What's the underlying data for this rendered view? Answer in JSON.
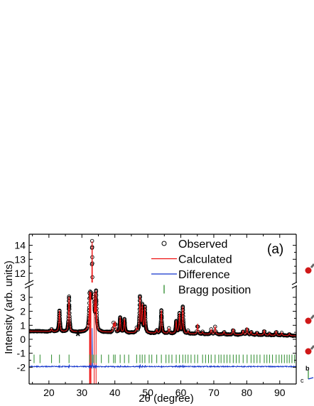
{
  "panel_label": "(a)",
  "chart_data": {
    "type": "scatter",
    "xlabel": "2θ (degree)",
    "ylabel": "Intensity (arb. units)",
    "xlim": [
      14,
      95
    ],
    "x_ticks": [
      20,
      30,
      40,
      50,
      60,
      70,
      80,
      90
    ],
    "y_lower_range": [
      -2.3,
      3.5
    ],
    "y_upper_range": [
      11.3,
      14.4
    ],
    "y_ticks_lower": [
      -2,
      -1,
      0,
      1,
      2,
      3
    ],
    "y_ticks_upper": [
      12,
      13,
      14
    ],
    "axis_break": true,
    "legend_position": "top-right",
    "colors": {
      "observed": "#000000",
      "calculated": "#ee1111",
      "difference": "#1133cc",
      "bragg": "#2a8a2a"
    },
    "annotation": {
      "text": "*",
      "x": 28.8,
      "y": 0.3
    },
    "background": {
      "start": 0.58,
      "end": 0.25
    },
    "peaks": [
      {
        "x": 20.8,
        "h": 0.18
      },
      {
        "x": 23.2,
        "h": 1.5
      },
      {
        "x": 26.1,
        "h": 2.5
      },
      {
        "x": 32.4,
        "h": 2.9
      },
      {
        "x": 33.1,
        "h": 13.3
      },
      {
        "x": 33.6,
        "h": 3.2
      },
      {
        "x": 34.3,
        "h": 2.6
      },
      {
        "x": 39.6,
        "h": 0.6
      },
      {
        "x": 40.1,
        "h": 0.7
      },
      {
        "x": 41.6,
        "h": 1.05
      },
      {
        "x": 42.9,
        "h": 0.95
      },
      {
        "x": 46.6,
        "h": 0.3
      },
      {
        "x": 47.6,
        "h": 2.5
      },
      {
        "x": 48.3,
        "h": 1.9
      },
      {
        "x": 49.1,
        "h": 1.8
      },
      {
        "x": 52.7,
        "h": 0.25
      },
      {
        "x": 54.1,
        "h": 1.65
      },
      {
        "x": 56.4,
        "h": 0.35
      },
      {
        "x": 58.6,
        "h": 0.85
      },
      {
        "x": 59.6,
        "h": 1.4
      },
      {
        "x": 60.6,
        "h": 1.9
      },
      {
        "x": 62.2,
        "h": 0.2
      },
      {
        "x": 65.1,
        "h": 0.7
      },
      {
        "x": 66.6,
        "h": 0.15
      },
      {
        "x": 69.2,
        "h": 0.35
      },
      {
        "x": 70.4,
        "h": 0.55
      },
      {
        "x": 73.1,
        "h": 0.2
      },
      {
        "x": 75.9,
        "h": 0.4
      },
      {
        "x": 78.9,
        "h": 0.3
      },
      {
        "x": 80.1,
        "h": 0.5
      },
      {
        "x": 81.3,
        "h": 0.25
      },
      {
        "x": 83.1,
        "h": 0.2
      },
      {
        "x": 85.3,
        "h": 0.35
      },
      {
        "x": 86.9,
        "h": 0.15
      },
      {
        "x": 88.9,
        "h": 0.3
      },
      {
        "x": 90.6,
        "h": 0.2
      },
      {
        "x": 92.9,
        "h": 0.15
      }
    ],
    "bragg_positions": [
      15.5,
      17.3,
      20.8,
      23.2,
      26.1,
      32.4,
      33.1,
      33.6,
      34.3,
      35.9,
      38.1,
      39.6,
      40.1,
      41.6,
      42.9,
      44.2,
      46.6,
      47.6,
      48.3,
      49.1,
      50.4,
      51.2,
      52.7,
      54.1,
      55.5,
      56.4,
      57.3,
      58.6,
      59.6,
      60.6,
      61.4,
      62.2,
      63.1,
      64.2,
      65.1,
      66.6,
      67.5,
      68.4,
      69.2,
      70.4,
      71.5,
      72.2,
      73.1,
      74.0,
      74.9,
      75.9,
      76.8,
      77.7,
      78.9,
      80.1,
      81.3,
      82.2,
      83.1,
      84.0,
      85.3,
      86.1,
      86.9,
      87.8,
      88.9,
      89.8,
      90.6,
      91.4,
      92.2,
      92.9,
      93.7,
      94.5
    ],
    "series": [
      {
        "name": "Observed",
        "marker": "open-circle"
      },
      {
        "name": "Calculated",
        "style": "line"
      },
      {
        "name": "Difference",
        "style": "line",
        "offset": -1.95
      },
      {
        "name": "Bragg position",
        "style": "ticks",
        "y": -1.4
      }
    ]
  }
}
